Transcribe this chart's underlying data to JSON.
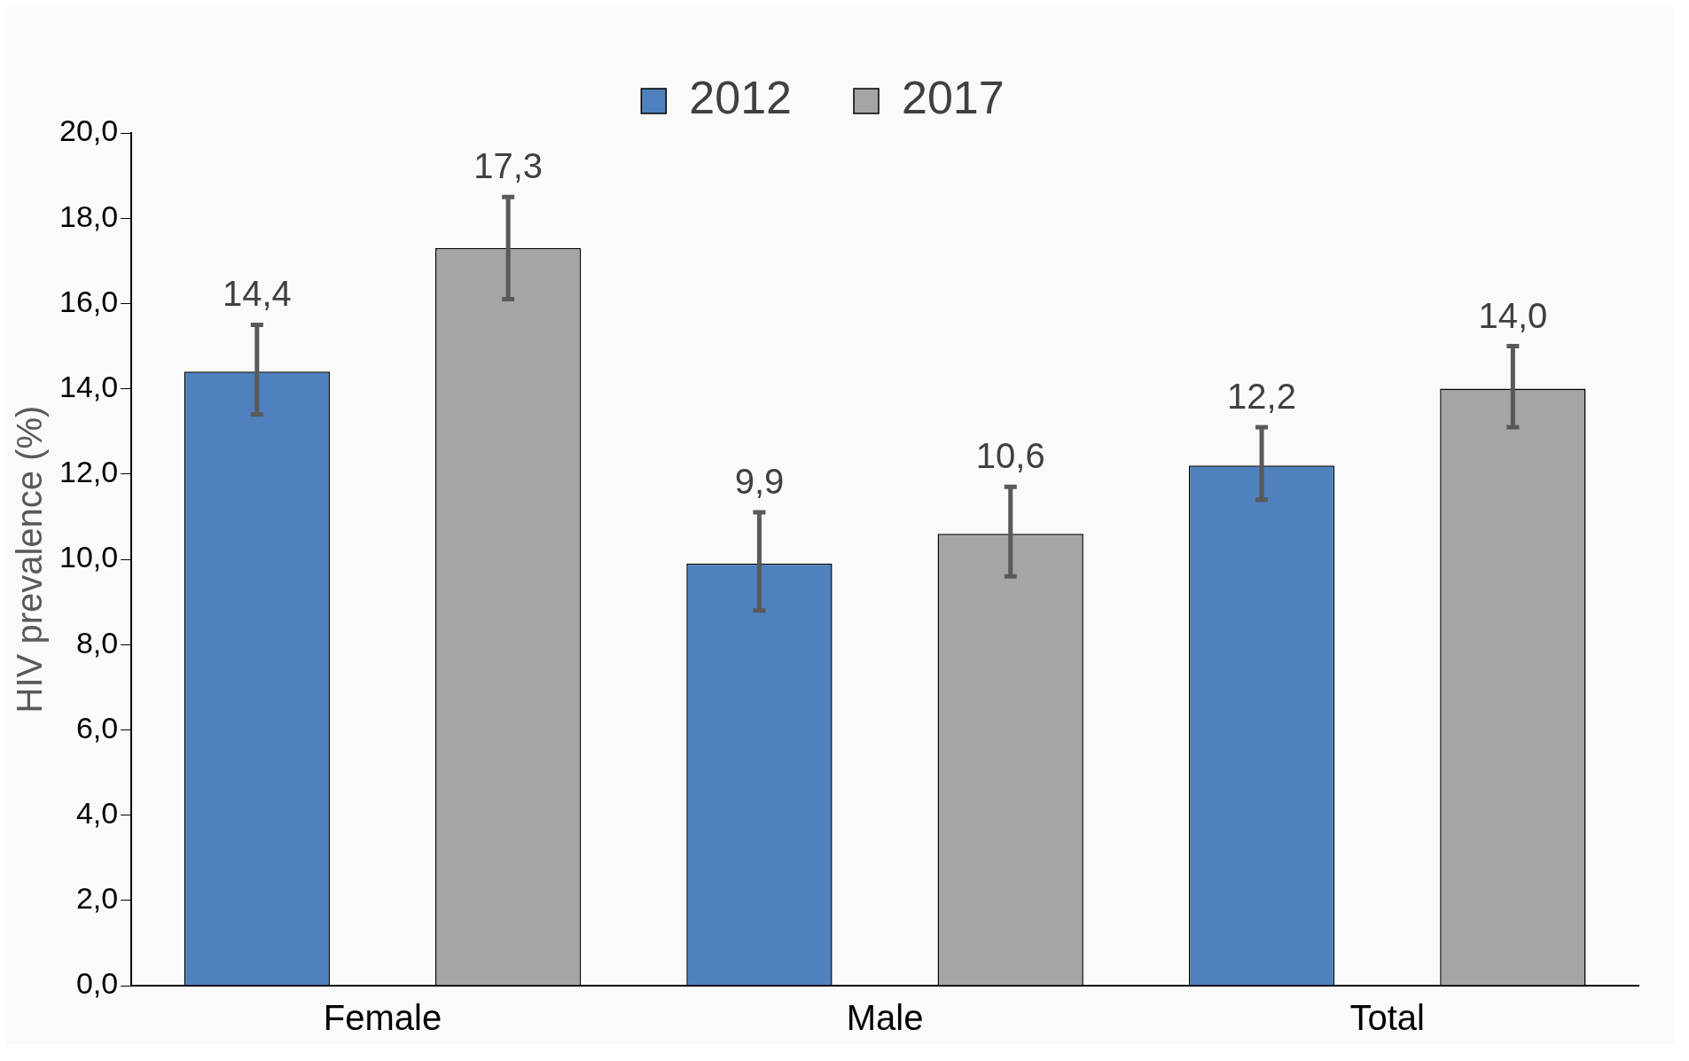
{
  "chart_data": {
    "type": "bar",
    "categories": [
      "Female",
      "Male",
      "Total"
    ],
    "ylabel": "HIV prevalence (%)",
    "ylim": [
      0,
      20
    ],
    "yticks": [
      {
        "value": 0,
        "label": "0,0"
      },
      {
        "value": 2,
        "label": "2,0"
      },
      {
        "value": 4,
        "label": "4,0"
      },
      {
        "value": 6,
        "label": "6,0"
      },
      {
        "value": 8,
        "label": "8,0"
      },
      {
        "value": 10,
        "label": "10,0"
      },
      {
        "value": 12,
        "label": "12,0"
      },
      {
        "value": 14,
        "label": "14,0"
      },
      {
        "value": 16,
        "label": "16,0"
      },
      {
        "value": 18,
        "label": "18,0"
      },
      {
        "value": 20,
        "label": "20,0"
      }
    ],
    "series": [
      {
        "name": "2012",
        "color": "#4f81bd",
        "values": [
          14.4,
          9.9,
          12.2
        ],
        "errors": [
          [
            13.4,
            15.5
          ],
          [
            8.8,
            11.1
          ],
          [
            11.4,
            13.1
          ]
        ],
        "value_labels": [
          "14,4",
          "9,9",
          "12,2"
        ]
      },
      {
        "name": "2017",
        "color": "#a5a5a5",
        "values": [
          17.3,
          10.6,
          14.0
        ],
        "errors": [
          [
            16.1,
            18.5
          ],
          [
            9.6,
            11.7
          ],
          [
            13.1,
            15.0
          ]
        ],
        "value_labels": [
          "17,3",
          "10,6",
          "14,0"
        ]
      }
    ],
    "grid": false,
    "legend": "top"
  }
}
